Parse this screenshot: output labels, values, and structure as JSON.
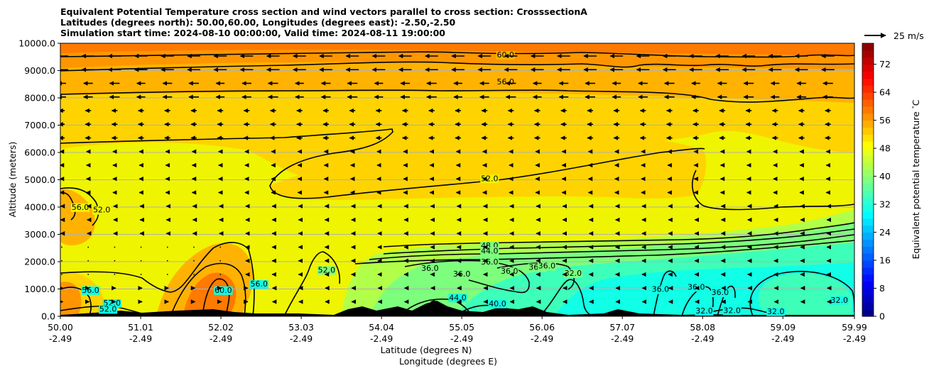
{
  "titles": {
    "line1": "Equivalent Potential Temperature cross section and wind vectors parallel to cross section: CrosssectionA",
    "line2": "Latitudes (degrees north): 50.00,60.00, Longitudes (degrees east): -2.50,-2.50",
    "line3": "Simulation start time: 2024-08-10 00:00:00, Valid time: 2024-08-11 19:00:00"
  },
  "chart_data": {
    "type": "heatmap",
    "ylabel": "Altitude (meters)",
    "xlabel_lat": "Latitude (degrees N)",
    "xlabel_lon": "Longitude (degrees E)",
    "ylim": [
      0,
      10000
    ],
    "y_ticks": [
      "0.0",
      "1000.0",
      "2000.0",
      "3000.0",
      "4000.0",
      "5000.0",
      "6000.0",
      "7000.0",
      "8000.0",
      "9000.0",
      "10000.0"
    ],
    "x_ticks": [
      {
        "lat": "50.00",
        "lon": "-2.49"
      },
      {
        "lat": "51.01",
        "lon": "-2.49"
      },
      {
        "lat": "52.02",
        "lon": "-2.49"
      },
      {
        "lat": "53.03",
        "lon": "-2.49"
      },
      {
        "lat": "54.04",
        "lon": "-2.49"
      },
      {
        "lat": "55.05",
        "lon": "-2.49"
      },
      {
        "lat": "56.06",
        "lon": "-2.49"
      },
      {
        "lat": "57.07",
        "lon": "-2.49"
      },
      {
        "lat": "58.08",
        "lon": "-2.49"
      },
      {
        "lat": "59.09",
        "lon": "-2.49"
      },
      {
        "lat": "59.99",
        "lon": "-2.49"
      }
    ],
    "grid": true,
    "colorbar": {
      "label": "Equivalent potential temperature $^\\circ$C",
      "range": [
        0,
        78
      ],
      "ticks": [
        "0",
        "8",
        "16",
        "24",
        "32",
        "40",
        "48",
        "56",
        "64",
        "72"
      ],
      "colormap": "jet"
    },
    "quiver_key": {
      "label": "25 m/s",
      "placement": "top-right"
    },
    "contour_labels": [
      {
        "text": "60.0",
        "lat": 55.6,
        "alt": 9480
      },
      {
        "text": "56.0",
        "lat": 55.6,
        "alt": 8500
      },
      {
        "text": "52.0",
        "lat": 55.4,
        "alt": 4950
      },
      {
        "text": "56.0",
        "lat": 50.25,
        "alt": 3900
      },
      {
        "text": "52.0",
        "lat": 50.52,
        "alt": 3800
      },
      {
        "text": "48.0",
        "lat": 55.4,
        "alt": 2500
      },
      {
        "text": "44.0",
        "lat": 55.4,
        "alt": 2300
      },
      {
        "text": "52.0",
        "lat": 53.35,
        "alt": 1600
      },
      {
        "text": "36.0",
        "lat": 55.4,
        "alt": 1890
      },
      {
        "text": "36.0",
        "lat": 54.65,
        "alt": 1660
      },
      {
        "text": "36.0",
        "lat": 55.05,
        "alt": 1450
      },
      {
        "text": "36.0",
        "lat": 55.65,
        "alt": 1560
      },
      {
        "text": "36.0",
        "lat": 56.0,
        "alt": 1700
      },
      {
        "text": "36.0",
        "lat": 56.12,
        "alt": 1750
      },
      {
        "text": "32.0",
        "lat": 56.45,
        "alt": 1480
      },
      {
        "text": "56.0",
        "lat": 52.5,
        "alt": 1090
      },
      {
        "text": "60.0",
        "lat": 52.05,
        "alt": 860
      },
      {
        "text": "56.0",
        "lat": 50.38,
        "alt": 860
      },
      {
        "text": "52.0",
        "lat": 50.65,
        "alt": 390
      },
      {
        "text": "52.0",
        "lat": 50.6,
        "alt": 170
      },
      {
        "text": "44.0",
        "lat": 55.0,
        "alt": 590
      },
      {
        "text": "40.0",
        "lat": 55.5,
        "alt": 370
      },
      {
        "text": "36.0",
        "lat": 57.55,
        "alt": 890
      },
      {
        "text": "36.0",
        "lat": 58.0,
        "alt": 980
      },
      {
        "text": "36.0",
        "lat": 58.3,
        "alt": 780
      },
      {
        "text": "32.0",
        "lat": 58.1,
        "alt": 100
      },
      {
        "text": "32.0",
        "lat": 58.45,
        "alt": 120
      },
      {
        "text": "32.0",
        "lat": 59.0,
        "alt": 80
      },
      {
        "text": "32.0",
        "lat": 59.8,
        "alt": 500
      }
    ]
  }
}
